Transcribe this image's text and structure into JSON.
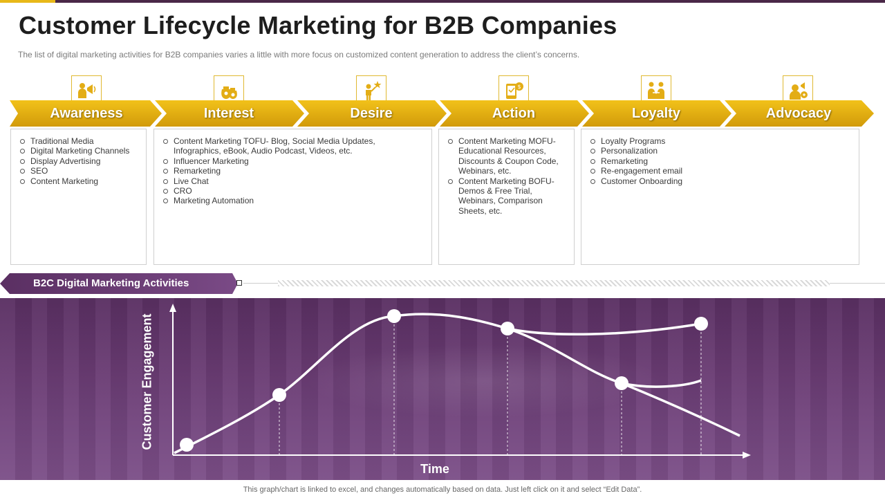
{
  "title": "Customer Lifecycle Marketing for B2B Companies",
  "subtitle": "The list of digital marketing activities for B2B companies varies  a little with  more focus on customized content generation  to address  the client’s concerns.",
  "colors": {
    "accent": "#e8b818",
    "accent_dark": "#c8940a",
    "purple": "#6b3d75",
    "purple_dark": "#4a2848"
  },
  "stages": [
    {
      "label": "Awareness",
      "icon": "megaphone-person-icon"
    },
    {
      "label": "Interest",
      "icon": "money-bags-icon"
    },
    {
      "label": "Desire",
      "icon": "person-star-icon"
    },
    {
      "label": "Action",
      "icon": "mobile-payment-icon"
    },
    {
      "label": "Loyalty",
      "icon": "handshake-people-icon"
    },
    {
      "label": "Advocacy",
      "icon": "person-speaker-icon"
    }
  ],
  "activity_boxes": [
    {
      "items": [
        "Traditional Media",
        "Digital Marketing Channels",
        "Display Advertising",
        "SEO",
        "Content Marketing"
      ]
    },
    {
      "items": [
        "Content Marketing TOFU- Blog, Social Media Updates, Infographics, eBook, Audio Podcast, Videos, etc.",
        "Influencer Marketing",
        "Remarketing",
        "Live Chat",
        "CRO",
        "Marketing Automation"
      ]
    },
    {
      "items": [
        "Content Marketing MOFU- Educational Resources, Discounts & Coupon Code, Webinars, etc.",
        "Content Marketing BOFU- Demos & Free Trial, Webinars, Comparison Sheets, etc."
      ]
    },
    {
      "items": [
        "Loyalty Programs",
        "Personalization",
        "Remarketing",
        "Re-engagement email",
        "Customer Onboarding"
      ]
    }
  ],
  "section_label": "B2C Digital Marketing Activities",
  "graph": {
    "y_axis_label": "Customer Engagement",
    "x_axis_label": "Time"
  },
  "footnote": "This graph/chart is linked to excel,  and changes automatically based on data. Just left click on it and select “Edit Data”."
}
